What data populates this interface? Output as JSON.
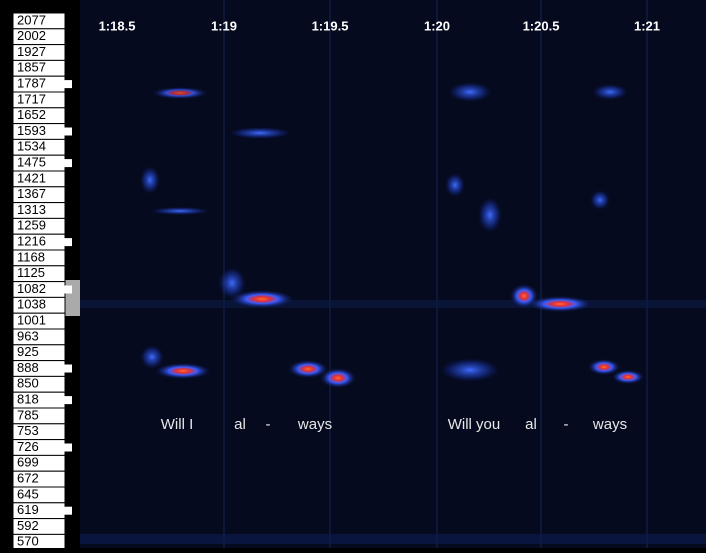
{
  "time_labels": [
    "1:18.5",
    "1:19",
    "1:19.5",
    "1:20",
    "1:20.5",
    "1:21"
  ],
  "frequency_labels": [
    "2077",
    "2002",
    "1927",
    "1857",
    "1787",
    "1717",
    "1652",
    "1593",
    "1534",
    "1475",
    "1421",
    "1367",
    "1313",
    "1259",
    "1216",
    "1168",
    "1125",
    "1082",
    "1038",
    "1001",
    "963",
    "925",
    "888",
    "850",
    "818",
    "785",
    "753",
    "726",
    "699",
    "672",
    "645",
    "619",
    "592",
    "570"
  ],
  "lyrics": [
    "Will I",
    "al",
    "-",
    "ways",
    "Will you",
    "al",
    "-",
    "ways"
  ]
}
